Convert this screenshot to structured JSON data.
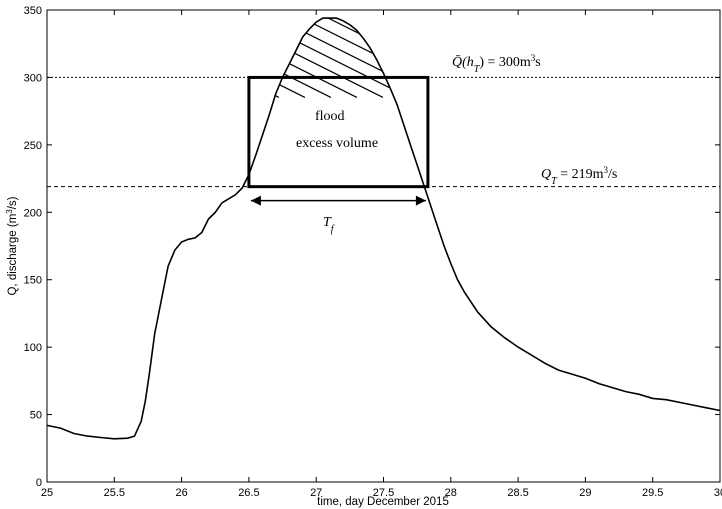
{
  "chart_data": {
    "type": "line",
    "xlabel": "time, day December 2015",
    "ylabel_main": "Q, discharge (m",
    "ylabel_sup": "3",
    "ylabel_end": "/s)",
    "xlim": [
      25,
      30
    ],
    "ylim": [
      0,
      350
    ],
    "xticks": [
      25,
      25.5,
      26,
      26.5,
      27,
      27.5,
      28,
      28.5,
      29,
      29.5,
      30
    ],
    "xtick_labels": [
      "25",
      "25.5",
      "26",
      "26.5",
      "27",
      "27.5",
      "28",
      "28.5",
      "29",
      "29.5",
      "30"
    ],
    "yticks": [
      0,
      50,
      100,
      150,
      200,
      250,
      300,
      350
    ],
    "ytick_labels": [
      "0",
      "50",
      "100",
      "150",
      "200",
      "250",
      "300",
      "350"
    ],
    "series": [
      {
        "x": [
          25,
          25.1,
          25.2,
          25.3,
          25.4,
          25.5,
          25.6,
          25.65,
          25.7,
          25.73,
          25.76,
          25.8,
          25.85,
          25.9,
          25.95,
          26.0,
          26.05,
          26.1,
          26.15,
          26.2,
          26.25,
          26.3,
          26.35,
          26.4,
          26.45,
          26.5,
          26.55,
          26.6,
          26.65,
          26.7,
          26.75,
          26.8,
          26.85,
          26.9,
          26.95,
          27.0,
          27.05,
          27.1,
          27.15,
          27.2,
          27.25,
          27.3,
          27.35,
          27.4,
          27.45,
          27.5,
          27.55,
          27.6,
          27.65,
          27.7,
          27.75,
          27.8,
          27.85,
          27.9,
          27.95,
          28.0,
          28.05,
          28.1,
          28.2,
          28.3,
          28.4,
          28.5,
          28.6,
          28.7,
          28.8,
          28.9,
          29.0,
          29.05,
          29.1,
          29.2,
          29.3,
          29.4,
          29.5,
          29.6,
          29.7,
          29.8,
          29.9,
          30.0
        ],
        "y": [
          42,
          40,
          36,
          34,
          33,
          32,
          32.5,
          34,
          45,
          60,
          80,
          110,
          135,
          160,
          172,
          178,
          180,
          181,
          185,
          195,
          200,
          207,
          210,
          213,
          218,
          228,
          242,
          257,
          272,
          288,
          300,
          310,
          320,
          330,
          336,
          341,
          344,
          344,
          344,
          342,
          339,
          335,
          329,
          322,
          313,
          303,
          292,
          280,
          265,
          250,
          235,
          220,
          205,
          190,
          175,
          162,
          150,
          141,
          126,
          115,
          107,
          100,
          94,
          88,
          83,
          80,
          77,
          75,
          73,
          70,
          67,
          65,
          62,
          61,
          59,
          57,
          55,
          53
        ]
      }
    ],
    "reference_lines": [
      {
        "y": 300,
        "style": "dotted"
      },
      {
        "y": 219,
        "style": "dashed"
      }
    ],
    "box": {
      "x0": 26.5,
      "x1": 27.83,
      "y0": 219,
      "y1": 300
    },
    "annotations": {
      "qbar_label": "Q̄(h",
      "qbar_sub": "T",
      "qbar_rest": ") = 300m",
      "qbar_sup": "3",
      "qbar_end": "s",
      "qt_label": "Q",
      "qt_sub": "T",
      "qt_rest": " = 219m",
      "qt_sup": "3",
      "qt_end": "/s",
      "flood": "flood",
      "excess_volume": "excess volume",
      "tf_label": "T",
      "tf_sub": "f"
    },
    "grid": false
  }
}
